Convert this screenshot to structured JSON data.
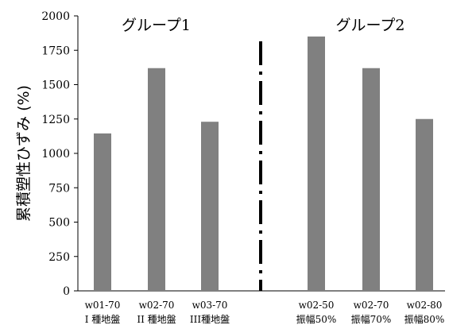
{
  "chart_data": {
    "type": "bar",
    "ylabel": "累積塑性ひずみ (%)",
    "ylim": [
      0,
      2000
    ],
    "yticks": [
      0,
      250,
      500,
      750,
      1000,
      1250,
      1500,
      1750,
      2000
    ],
    "bar_color": "#808080",
    "divider_color": "#000000",
    "groups": [
      {
        "label": "グループ1",
        "categories": [
          0,
          1,
          2
        ]
      },
      {
        "label": "グループ2",
        "categories": [
          3,
          4,
          5
        ]
      }
    ],
    "categories": [
      {
        "line1": "w01-70",
        "line2": "I 種地盤"
      },
      {
        "line1": "w02-70",
        "line2": "II 種地盤"
      },
      {
        "line1": "w03-70",
        "line2": "III種地盤"
      },
      {
        "line1": "w02-50",
        "line2": "振幅50%"
      },
      {
        "line1": "w02-70",
        "line2": "振幅70%"
      },
      {
        "line1": "w02-80",
        "line2": "振幅80%"
      }
    ],
    "values": [
      1145,
      1620,
      1230,
      1850,
      1620,
      1250
    ]
  }
}
